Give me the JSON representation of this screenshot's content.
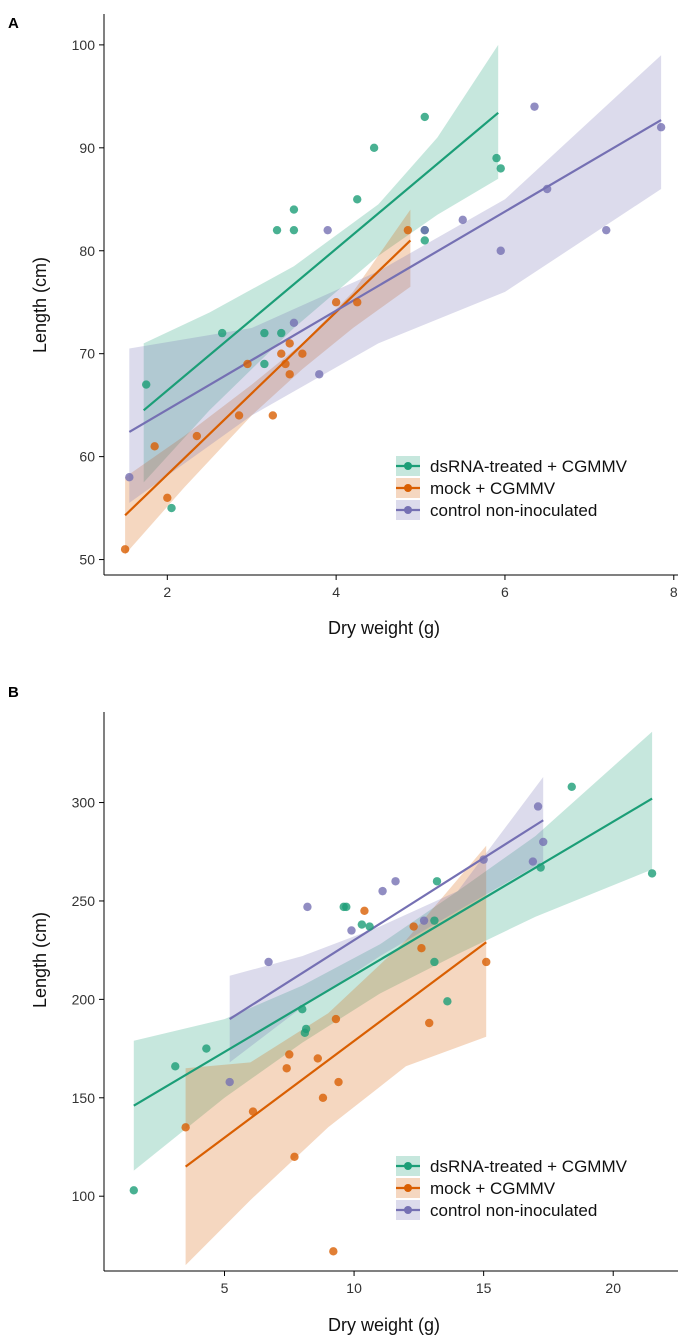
{
  "chart_data": [
    {
      "panel": "A",
      "type": "scatter",
      "xlabel": "Dry weight (g)",
      "ylabel": "Length (cm)",
      "xlim": [
        1.25,
        8.05
      ],
      "ylim": [
        48.5,
        103
      ],
      "xticks": [
        2,
        4,
        6,
        8
      ],
      "yticks": [
        50,
        60,
        70,
        80,
        90,
        100
      ],
      "legend_position": "bottom-right",
      "series": [
        {
          "name": "dsRNA-treated + CGMMV",
          "color": "#1b9e77",
          "points": [
            [
              1.75,
              67
            ],
            [
              2.05,
              55
            ],
            [
              2.65,
              72
            ],
            [
              3.15,
              72
            ],
            [
              3.15,
              69
            ],
            [
              3.3,
              82
            ],
            [
              3.35,
              72
            ],
            [
              3.5,
              84
            ],
            [
              3.5,
              82
            ],
            [
              4.25,
              85
            ],
            [
              4.45,
              90
            ],
            [
              5.05,
              93
            ],
            [
              5.05,
              82
            ],
            [
              5.05,
              81
            ],
            [
              5.9,
              89
            ],
            [
              5.95,
              88
            ]
          ],
          "fit": [
            [
              1.72,
              64.5
            ],
            [
              5.92,
              93.4
            ]
          ],
          "band": {
            "x": [
              1.72,
              2.5,
              3.5,
              4.5,
              5.2,
              5.92
            ],
            "lower": [
              57.5,
              64.5,
              72.5,
              79.5,
              83.5,
              87
            ],
            "upper": [
              71,
              74,
              78.5,
              84.5,
              91,
              100
            ]
          }
        },
        {
          "name": "mock + CGMMV",
          "color": "#d95f02",
          "points": [
            [
              1.5,
              51
            ],
            [
              1.85,
              61
            ],
            [
              2.0,
              56
            ],
            [
              2.35,
              62
            ],
            [
              2.85,
              64
            ],
            [
              2.95,
              69
            ],
            [
              3.25,
              64
            ],
            [
              3.35,
              70
            ],
            [
              3.4,
              69
            ],
            [
              3.45,
              71
            ],
            [
              3.45,
              68
            ],
            [
              3.6,
              70
            ],
            [
              4.0,
              75
            ],
            [
              4.25,
              75
            ],
            [
              4.85,
              82
            ]
          ],
          "fit": [
            [
              1.5,
              54.3
            ],
            [
              4.88,
              81
            ]
          ],
          "band": {
            "x": [
              1.5,
              2.2,
              3.0,
              3.6,
              4.2,
              4.88
            ],
            "lower": [
              50.5,
              57,
              64,
              68.5,
              72.5,
              76.5
            ],
            "upper": [
              58,
              62,
              67,
              71,
              76,
              84
            ]
          }
        },
        {
          "name": "control non-inoculated",
          "color": "#7570b3",
          "points": [
            [
              1.55,
              58
            ],
            [
              3.5,
              73
            ],
            [
              3.8,
              68
            ],
            [
              3.9,
              82
            ],
            [
              5.05,
              82
            ],
            [
              5.5,
              83
            ],
            [
              5.95,
              80
            ],
            [
              6.35,
              94
            ],
            [
              6.5,
              86
            ],
            [
              7.2,
              82
            ],
            [
              7.85,
              92
            ]
          ],
          "fit": [
            [
              1.55,
              62.4
            ],
            [
              7.85,
              92.7
            ]
          ],
          "band": {
            "x": [
              1.55,
              3.0,
              4.5,
              6.0,
              7.85
            ],
            "lower": [
              55.5,
              64,
              71,
              76,
              86
            ],
            "upper": [
              70.5,
              72.5,
              78,
              85,
              99
            ]
          }
        }
      ]
    },
    {
      "panel": "B",
      "type": "scatter",
      "xlabel": "Dry weight (g)",
      "ylabel": "Length (cm)",
      "xlim": [
        0.35,
        22.5
      ],
      "ylim": [
        62,
        346
      ],
      "xticks": [
        5,
        10,
        15,
        20
      ],
      "yticks": [
        100,
        150,
        200,
        250,
        300
      ],
      "legend_position": "bottom-right",
      "series": [
        {
          "name": "dsRNA-treated + CGMMV",
          "color": "#1b9e77",
          "points": [
            [
              1.5,
              103
            ],
            [
              3.1,
              166
            ],
            [
              4.3,
              175
            ],
            [
              8.0,
              195
            ],
            [
              8.1,
              183
            ],
            [
              8.15,
              185
            ],
            [
              9.6,
              247
            ],
            [
              9.7,
              247
            ],
            [
              10.3,
              238
            ],
            [
              10.6,
              237
            ],
            [
              13.1,
              240
            ],
            [
              13.1,
              219
            ],
            [
              13.2,
              260
            ],
            [
              13.6,
              199
            ],
            [
              17.2,
              267
            ],
            [
              18.4,
              308
            ],
            [
              21.5,
              264
            ]
          ],
          "fit": [
            [
              1.5,
              146
            ],
            [
              21.5,
              302
            ]
          ],
          "band": {
            "x": [
              1.5,
              5,
              8,
              11,
              14,
              17,
              21.5
            ],
            "lower": [
              113,
              150,
              178,
              203,
              223,
              242,
              266
            ],
            "upper": [
              179,
              190,
              207,
              228,
              255,
              283,
              336
            ]
          }
        },
        {
          "name": "mock + CGMMV",
          "color": "#d95f02",
          "points": [
            [
              3.5,
              135
            ],
            [
              6.1,
              143
            ],
            [
              7.4,
              165
            ],
            [
              7.5,
              172
            ],
            [
              7.7,
              120
            ],
            [
              8.6,
              170
            ],
            [
              8.8,
              150
            ],
            [
              9.2,
              72
            ],
            [
              9.3,
              190
            ],
            [
              9.4,
              158
            ],
            [
              10.4,
              245
            ],
            [
              12.3,
              237
            ],
            [
              12.6,
              226
            ],
            [
              12.9,
              188
            ],
            [
              15.1,
              219
            ]
          ],
          "fit": [
            [
              3.5,
              115
            ],
            [
              15.1,
              229
            ]
          ],
          "band": {
            "x": [
              3.5,
              6,
              9,
              12,
              15.1
            ],
            "lower": [
              65,
              98,
              135,
              166,
              181
            ],
            "upper": [
              165,
              168,
              193,
              230,
              278
            ]
          }
        },
        {
          "name": "control non-inoculated",
          "color": "#7570b3",
          "points": [
            [
              5.2,
              158
            ],
            [
              6.7,
              219
            ],
            [
              8.2,
              247
            ],
            [
              9.9,
              235
            ],
            [
              11.1,
              255
            ],
            [
              11.6,
              260
            ],
            [
              12.7,
              240
            ],
            [
              15.0,
              271
            ],
            [
              16.9,
              270
            ],
            [
              17.1,
              298
            ],
            [
              17.3,
              280
            ]
          ],
          "fit": [
            [
              5.2,
              190
            ],
            [
              17.3,
              291
            ]
          ],
          "band": {
            "x": [
              5.2,
              8,
              11,
              14,
              17.3
            ],
            "lower": [
              168,
              196,
              222,
              245,
              270
            ],
            "upper": [
              212,
              222,
              237,
              255,
              313
            ]
          }
        }
      ]
    }
  ]
}
